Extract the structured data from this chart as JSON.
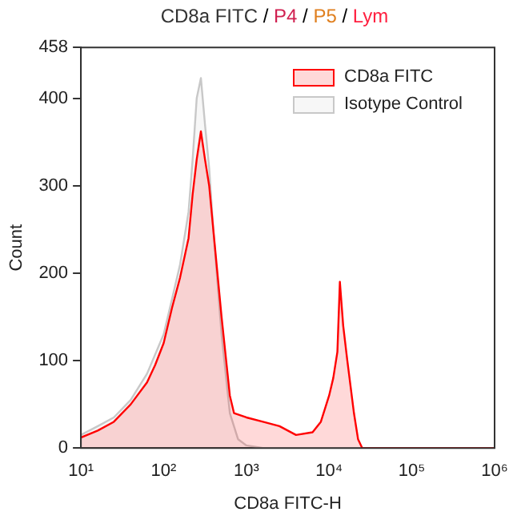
{
  "chart_data": {
    "type": "area",
    "title": "CD8a FITC / P4 / P5 / Lym",
    "xlabel": "CD8a FITC-H",
    "ylabel": "Count",
    "log": "x",
    "xlim": [
      10,
      1000000
    ],
    "xticks": [
      {
        "value": 10,
        "label": "10¹"
      },
      {
        "value": 100,
        "label": "10²"
      },
      {
        "value": 1000,
        "label": "10³"
      },
      {
        "value": 10000,
        "label": "10⁴"
      },
      {
        "value": 100000,
        "label": "10⁵"
      },
      {
        "value": 1000000,
        "label": "10⁶"
      }
    ],
    "ylim": [
      0,
      458
    ],
    "yticks": [
      0,
      100,
      200,
      300,
      400,
      458
    ],
    "grid": false,
    "legend": "top right",
    "series": [
      {
        "name": "CD8a FITC",
        "color": "#ff0000",
        "x": [
          10,
          16,
          25,
          40,
          63,
          79,
          100,
          126,
          158,
          200,
          224,
          251,
          282,
          316,
          355,
          398,
          501,
          631,
          708,
          1000,
          1585,
          2512,
          3981,
          6310,
          7943,
          10000,
          11220,
          12589,
          13490,
          14791,
          16596,
          19953,
          22387,
          25119,
          1000000
        ],
        "values": [
          12,
          20,
          30,
          50,
          75,
          95,
          120,
          160,
          195,
          240,
          290,
          330,
          362,
          330,
          300,
          250,
          150,
          60,
          40,
          35,
          30,
          25,
          15,
          18,
          30,
          60,
          80,
          110,
          190,
          140,
          100,
          40,
          10,
          0,
          0
        ]
      },
      {
        "name": "Isotype Control",
        "color": "#c8c8c8",
        "x": [
          10,
          16,
          25,
          40,
          63,
          100,
          126,
          158,
          200,
          224,
          251,
          282,
          316,
          355,
          398,
          501,
          631,
          794,
          1000,
          1585,
          1000000
        ],
        "values": [
          15,
          25,
          35,
          55,
          85,
          130,
          170,
          210,
          270,
          330,
          400,
          423,
          370,
          320,
          250,
          130,
          40,
          10,
          3,
          0,
          0
        ]
      }
    ]
  }
}
